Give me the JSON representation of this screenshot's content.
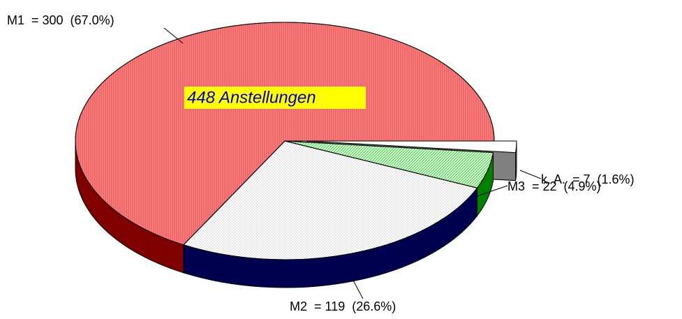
{
  "chart_data": {
    "type": "pie",
    "annotation": "448 Anstellungen",
    "values": [
      300,
      119,
      22,
      7
    ],
    "value_labels": [
      "M1  = 300  (67.0%)",
      "M2  = 119  (26.6%)",
      "M3  = 22  (4.9%)",
      "k. A.  = 7  (1.6%)"
    ],
    "colors": [
      "#ff8080",
      "#ffffff",
      "#ccffcc",
      "#ffffff"
    ],
    "side_colors": [
      "#800000",
      "#000050",
      "#008000",
      "#808080"
    ]
  }
}
